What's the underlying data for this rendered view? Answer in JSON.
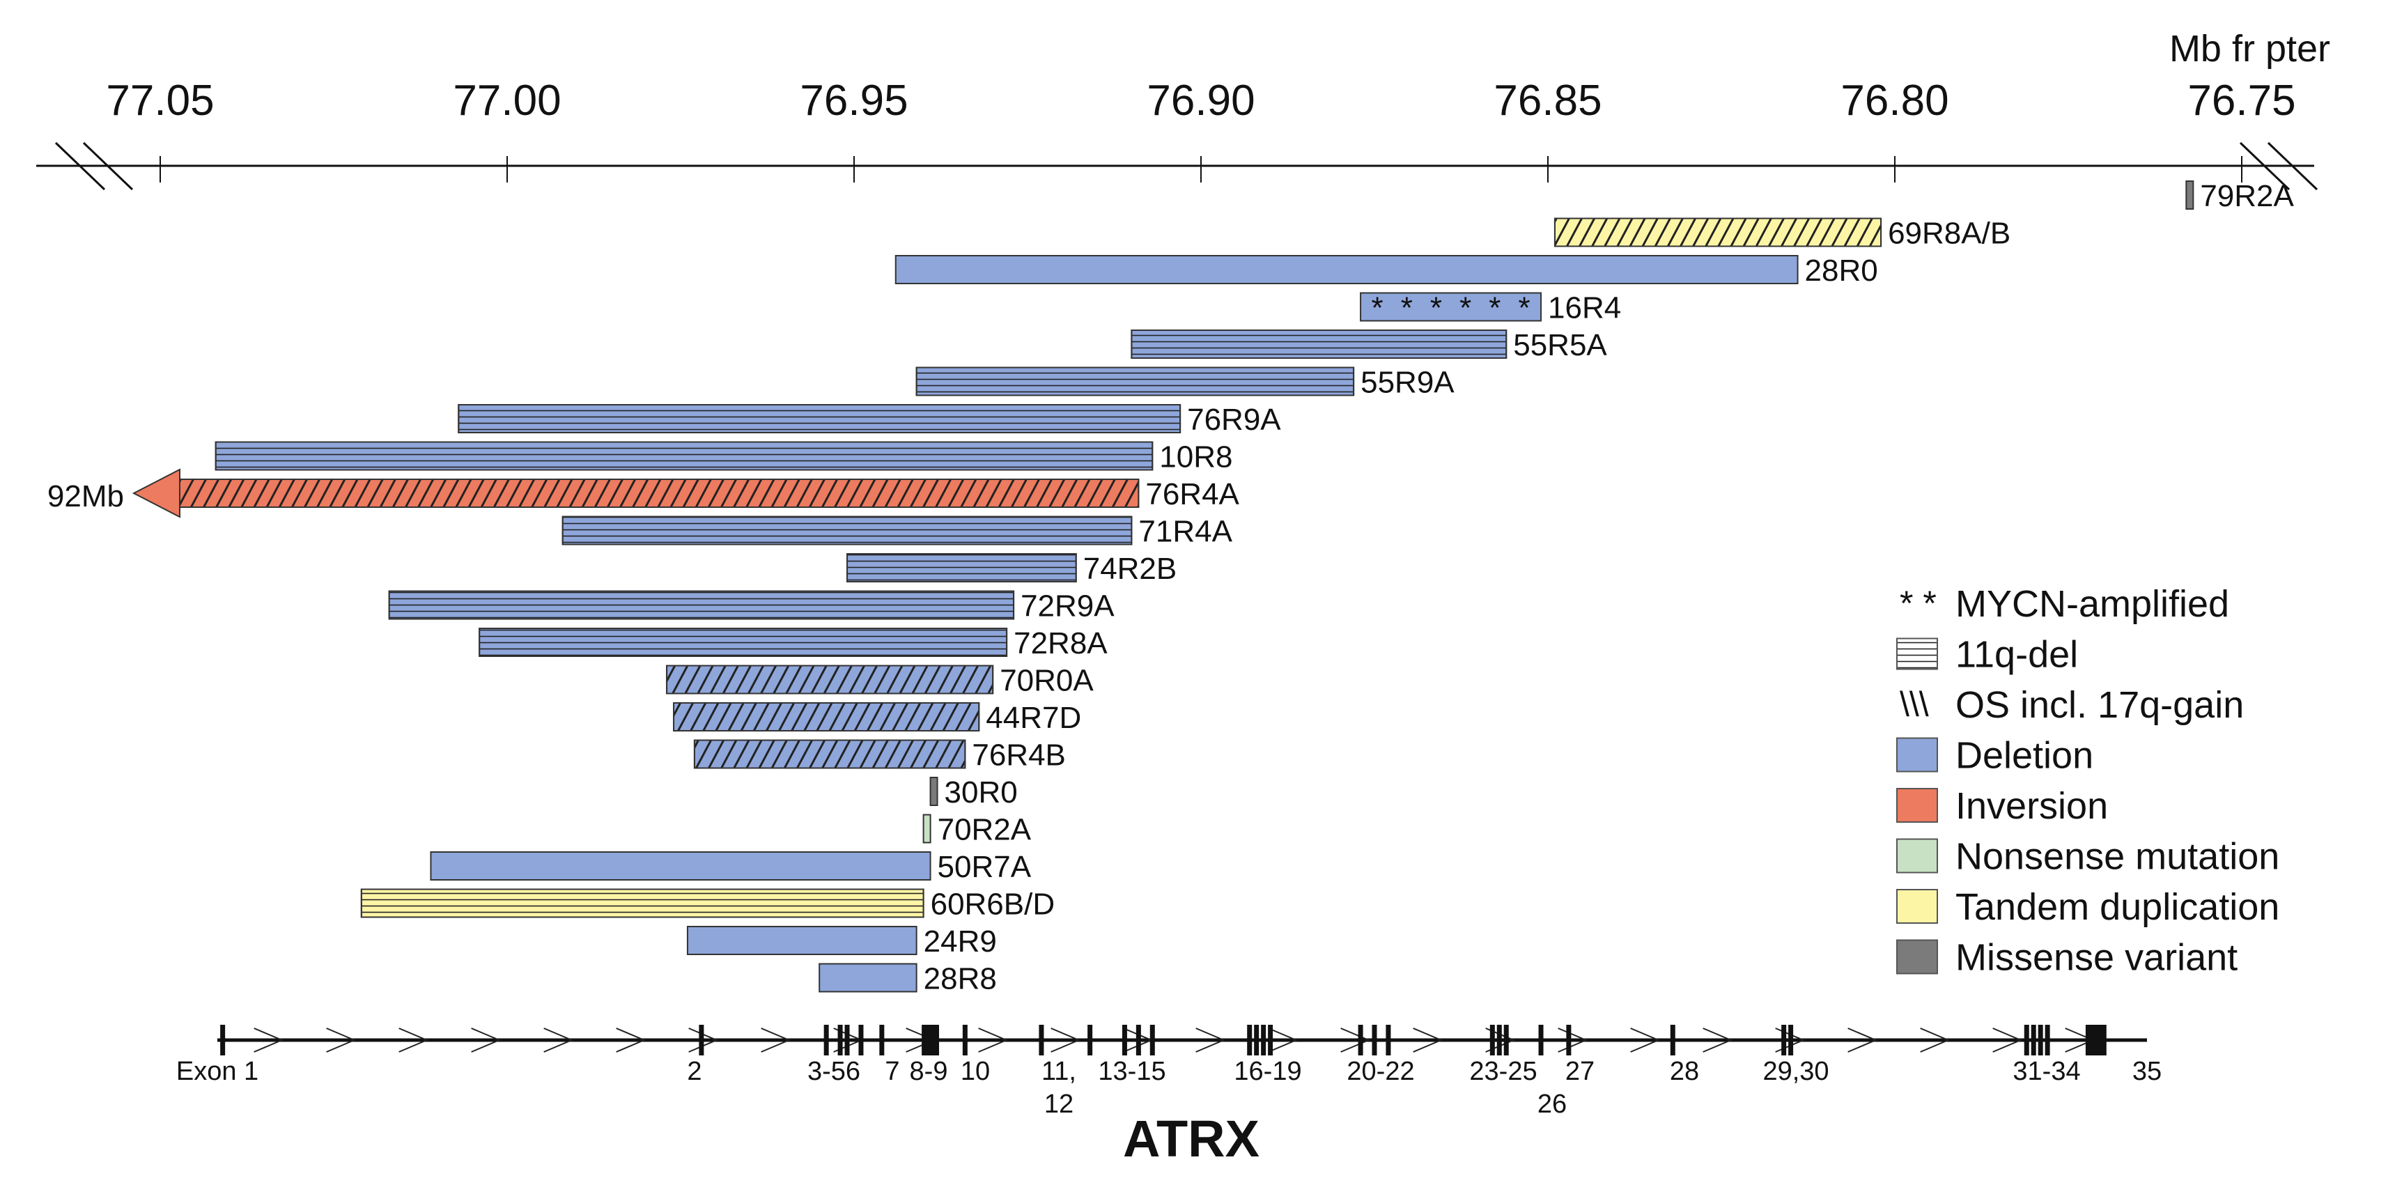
{
  "axis": {
    "unit_label": "Mb fr pter",
    "ticks": [
      {
        "label": "77.05"
      },
      {
        "label": "77.00"
      },
      {
        "label": "76.95"
      },
      {
        "label": "76.90"
      },
      {
        "label": "76.85"
      },
      {
        "label": "76.80"
      },
      {
        "label": "76.75"
      }
    ]
  },
  "arrow_label": "92Mb",
  "colors": {
    "deletion": "#8ea6da",
    "inversion": "#ed7b5f",
    "nonsense": "#c8e1c4",
    "duplication": "#fdf5a6",
    "missense": "#7b7b7b"
  },
  "chart_data": {
    "type": "genomic-interval-map",
    "title": "ATRX",
    "axis_label": "Mb fr pter",
    "axis_direction": "descending left-to-right",
    "axis_range_mb": [
      77.05,
      76.75
    ],
    "samples": [
      {
        "label": "79R2A",
        "start": 76.758,
        "end": 76.757,
        "type": "missense",
        "pattern": "none"
      },
      {
        "label": "69R8A/B",
        "start": 76.849,
        "end": 76.802,
        "type": "duplication",
        "pattern": "diag"
      },
      {
        "label": "28R0",
        "start": 76.944,
        "end": 76.814,
        "type": "deletion",
        "pattern": "none"
      },
      {
        "label": "16R4",
        "start": 76.877,
        "end": 76.851,
        "type": "deletion",
        "pattern": "stars"
      },
      {
        "label": "55R5A",
        "start": 76.91,
        "end": 76.856,
        "type": "deletion",
        "pattern": "horiz"
      },
      {
        "label": "55R9A",
        "start": 76.941,
        "end": 76.878,
        "type": "deletion",
        "pattern": "horiz"
      },
      {
        "label": "76R9A",
        "start": 77.007,
        "end": 76.903,
        "type": "deletion",
        "pattern": "horiz"
      },
      {
        "label": "10R8",
        "start": 77.042,
        "end": 76.907,
        "type": "deletion",
        "pattern": "horiz"
      },
      {
        "label": "76R4A",
        "start": 77.05,
        "end": 76.909,
        "type": "inversion",
        "pattern": "diag",
        "extends_to": "92Mb"
      },
      {
        "label": "71R4A",
        "start": 76.992,
        "end": 76.91,
        "type": "deletion",
        "pattern": "horiz"
      },
      {
        "label": "74R2B",
        "start": 76.951,
        "end": 76.918,
        "type": "deletion",
        "pattern": "horiz"
      },
      {
        "label": "72R9A",
        "start": 77.017,
        "end": 76.927,
        "type": "deletion",
        "pattern": "horiz"
      },
      {
        "label": "72R8A",
        "start": 77.004,
        "end": 76.928,
        "type": "deletion",
        "pattern": "horiz"
      },
      {
        "label": "70R0A",
        "start": 76.977,
        "end": 76.93,
        "type": "deletion",
        "pattern": "diag"
      },
      {
        "label": "44R7D",
        "start": 76.976,
        "end": 76.932,
        "type": "deletion",
        "pattern": "diag"
      },
      {
        "label": "76R4B",
        "start": 76.973,
        "end": 76.934,
        "type": "deletion",
        "pattern": "diag"
      },
      {
        "label": "30R0",
        "start": 76.939,
        "end": 76.938,
        "type": "missense",
        "pattern": "none"
      },
      {
        "label": "70R2A",
        "start": 76.94,
        "end": 76.939,
        "type": "nonsense",
        "pattern": "none"
      },
      {
        "label": "50R7A",
        "start": 77.011,
        "end": 76.939,
        "type": "deletion",
        "pattern": "none"
      },
      {
        "label": "60R6B/D",
        "start": 77.021,
        "end": 76.94,
        "type": "duplication",
        "pattern": "horiz"
      },
      {
        "label": "24R9",
        "start": 76.974,
        "end": 76.941,
        "type": "deletion",
        "pattern": "none"
      },
      {
        "label": "28R8",
        "start": 76.955,
        "end": 76.941,
        "type": "deletion",
        "pattern": "none"
      }
    ],
    "exons": [
      {
        "number": "1",
        "pos": 77.041
      },
      {
        "number": "2",
        "pos": 76.972
      },
      {
        "number": "3",
        "pos": 76.954
      },
      {
        "number": "4",
        "pos": 76.952
      },
      {
        "number": "5",
        "pos": 76.951
      },
      {
        "number": "6",
        "pos": 76.949
      },
      {
        "number": "7",
        "pos": 76.946
      },
      {
        "number": "8-9",
        "pos": 76.939,
        "width_mb": 0.0025
      },
      {
        "number": "10",
        "pos": 76.934
      },
      {
        "number": "11",
        "pos": 76.923
      },
      {
        "number": "12",
        "pos": 76.916
      },
      {
        "number": "13",
        "pos": 76.911
      },
      {
        "number": "14",
        "pos": 76.909
      },
      {
        "number": "15",
        "pos": 76.907
      },
      {
        "number": "16",
        "pos": 76.893
      },
      {
        "number": "17",
        "pos": 76.892
      },
      {
        "number": "18",
        "pos": 76.891
      },
      {
        "number": "19",
        "pos": 76.89
      },
      {
        "number": "20",
        "pos": 76.877
      },
      {
        "number": "21",
        "pos": 76.875
      },
      {
        "number": "22",
        "pos": 76.873
      },
      {
        "number": "23",
        "pos": 76.858
      },
      {
        "number": "24",
        "pos": 76.857
      },
      {
        "number": "25",
        "pos": 76.856
      },
      {
        "number": "26",
        "pos": 76.851
      },
      {
        "number": "27",
        "pos": 76.847
      },
      {
        "number": "28",
        "pos": 76.832
      },
      {
        "number": "29",
        "pos": 76.816
      },
      {
        "number": "30",
        "pos": 76.815
      },
      {
        "number": "31",
        "pos": 76.781
      },
      {
        "number": "32",
        "pos": 76.78
      },
      {
        "number": "33",
        "pos": 76.779
      },
      {
        "number": "34",
        "pos": 76.778
      },
      {
        "number": "35",
        "pos": 76.771,
        "width_mb": 0.003
      }
    ],
    "exon_labels": [
      {
        "text": "Exon 1",
        "line": 1
      },
      {
        "text": "2",
        "line": 1
      },
      {
        "text": "3-56",
        "line": 1
      },
      {
        "text": "7",
        "line": 1
      },
      {
        "text": "8-9",
        "line": 1
      },
      {
        "text": "10",
        "line": 1
      },
      {
        "text": "11,",
        "line": 1
      },
      {
        "text": "12",
        "line": 2
      },
      {
        "text": "13-15",
        "line": 1
      },
      {
        "text": "16-19",
        "line": 1
      },
      {
        "text": "20-22",
        "line": 1
      },
      {
        "text": "23-25",
        "line": 1
      },
      {
        "text": "26",
        "line": 2
      },
      {
        "text": "27",
        "line": 1
      },
      {
        "text": "28",
        "line": 1
      },
      {
        "text": "29,30",
        "line": 1
      },
      {
        "text": "31-34",
        "line": 1
      },
      {
        "text": "35",
        "line": 1
      }
    ],
    "legend": [
      {
        "kind": "stars",
        "label": "MYCN-amplified"
      },
      {
        "kind": "horiz",
        "label": "11q-del"
      },
      {
        "kind": "diag",
        "label": "OS incl. 17q-gain"
      },
      {
        "kind": "deletion",
        "label": "Deletion"
      },
      {
        "kind": "inversion",
        "label": "Inversion"
      },
      {
        "kind": "nonsense",
        "label": "Nonsense mutation"
      },
      {
        "kind": "duplication",
        "label": "Tandem duplication"
      },
      {
        "kind": "missense",
        "label": "Missense variant"
      }
    ],
    "legend_symbols": {
      "stars": "* *",
      "diag": "\\\\\\"
    }
  }
}
